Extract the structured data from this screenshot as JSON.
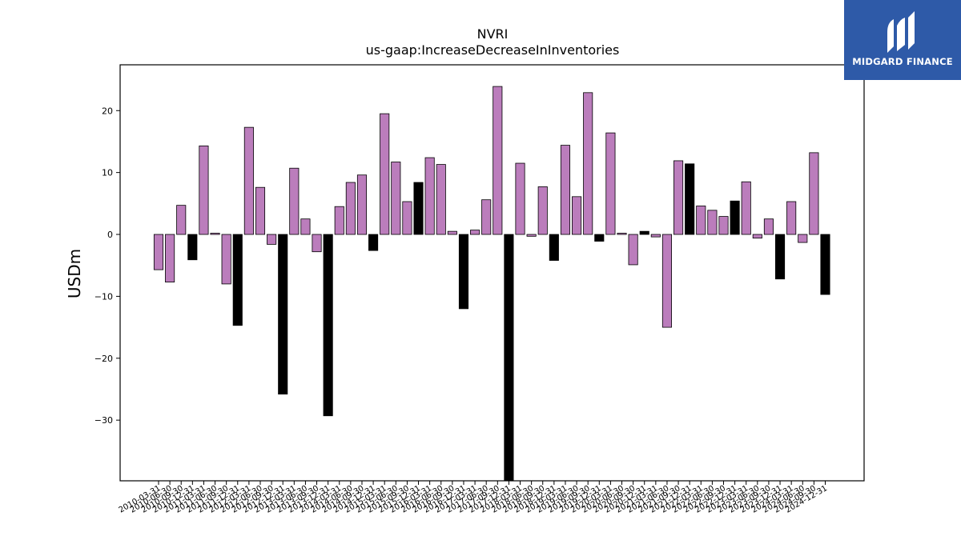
{
  "brand": {
    "name": "MIDGARD FINANCE",
    "color": "#2e5aa8",
    "icon": "midgard-logo-icon"
  },
  "colors": {
    "positive_quarter": "#bb7dbc",
    "year_end": "#000000"
  },
  "chart_data": {
    "type": "bar",
    "title": "NVRI",
    "subtitle": "us-gaap:IncreaseDecreaseInInventories",
    "xlabel": "",
    "ylabel": "USDm",
    "ylim": [
      -39.8,
      27.4
    ],
    "yticks": [
      -30,
      -20,
      -10,
      0,
      10,
      20
    ],
    "ytick_labels": [
      "−30",
      "−20",
      "−10",
      "0",
      "10",
      "20"
    ],
    "grid": false,
    "legend": "none",
    "categories": [
      "2010-03-31",
      "2010-06-30",
      "2010-09-30",
      "2010-12-31",
      "2011-03-31",
      "2011-06-30",
      "2011-09-30",
      "2011-12-31",
      "2012-03-31",
      "2012-06-30",
      "2012-09-30",
      "2012-12-31",
      "2013-03-31",
      "2013-06-30",
      "2013-09-30",
      "2013-12-31",
      "2014-03-31",
      "2014-06-30",
      "2014-09-30",
      "2014-12-31",
      "2015-03-31",
      "2015-06-30",
      "2015-09-30",
      "2015-12-31",
      "2016-03-31",
      "2016-06-30",
      "2016-09-30",
      "2016-12-31",
      "2017-03-31",
      "2017-06-30",
      "2017-09-30",
      "2017-12-31",
      "2018-03-31",
      "2018-06-30",
      "2018-09-30",
      "2018-12-31",
      "2019-03-31",
      "2019-06-30",
      "2019-09-30",
      "2019-12-31",
      "2020-03-31",
      "2020-06-30",
      "2020-09-30",
      "2020-12-31",
      "2021-03-31",
      "2021-06-30",
      "2021-09-30",
      "2021-12-31",
      "2022-03-31",
      "2022-06-30",
      "2022-09-30",
      "2022-12-31",
      "2023-03-31",
      "2023-06-30",
      "2023-09-30",
      "2023-12-31",
      "2024-03-31",
      "2024-06-30",
      "2024-09-30",
      "2024-12-31"
    ],
    "values": [
      -5.7,
      -7.7,
      4.7,
      -4.1,
      14.3,
      0.2,
      -8.0,
      -14.7,
      17.3,
      7.6,
      -1.6,
      -25.8,
      10.7,
      2.5,
      -2.8,
      -29.3,
      4.5,
      8.4,
      9.6,
      -2.6,
      19.5,
      11.7,
      5.3,
      8.4,
      12.4,
      11.3,
      0.5,
      -12.0,
      0.7,
      5.6,
      23.9,
      -40.0,
      11.5,
      -0.3,
      7.7,
      -4.2,
      14.4,
      6.1,
      22.9,
      -1.1,
      16.4,
      0.2,
      -4.9,
      0.5,
      -0.4,
      -15.0,
      11.9,
      11.4,
      4.6,
      3.9,
      2.9,
      5.4,
      8.5,
      -0.6,
      2.5,
      -7.2,
      5.3,
      -1.3,
      13.2,
      -9.7
    ],
    "year_end_bars": [
      3,
      7,
      11,
      15,
      19,
      23,
      27,
      31,
      35,
      39,
      43,
      47,
      51,
      55,
      59
    ]
  }
}
